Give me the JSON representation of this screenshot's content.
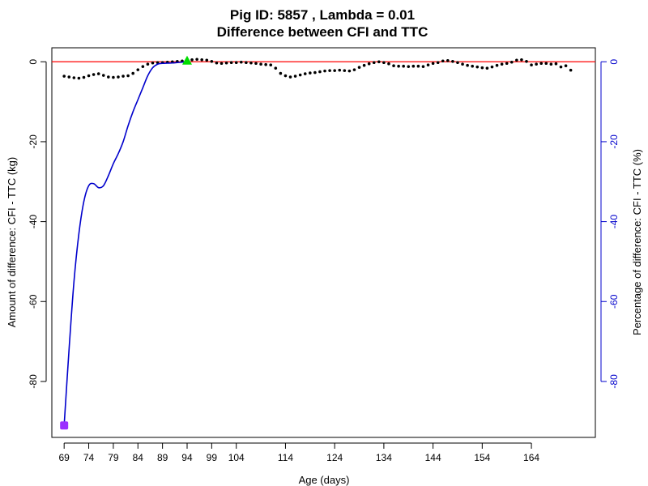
{
  "chart_data": {
    "type": "line",
    "title": "Pig ID: 5857 , Lambda = 0.01",
    "subtitle": "Difference between CFI and TTC",
    "xlabel": "Age (days)",
    "ylabel_left": "Amount of difference: CFI - TTC (kg)",
    "ylabel_right": "Percentage of difference: CFI - TTC (%)",
    "xlim": [
      66.5,
      177
    ],
    "ylim": [
      -94,
      3.5
    ],
    "x_ticks": [
      69,
      74,
      79,
      84,
      89,
      94,
      99,
      104,
      114,
      124,
      134,
      144,
      154,
      164
    ],
    "y_ticks_left": [
      0,
      -20,
      -40,
      -60,
      -80
    ],
    "y_ticks_right": [
      0,
      -20,
      -40,
      -60,
      -80
    ],
    "grid": false,
    "reference_line": {
      "y": 0,
      "color": "#ff0000"
    },
    "colors": {
      "amount": "#000000",
      "percentage": "#0000cc",
      "right_axis": "#0000cc",
      "start_marker": "#9b30ff",
      "end_marker": "#00dd00"
    },
    "markers": [
      {
        "name": "start",
        "shape": "square",
        "x": 69,
        "y": -91
      },
      {
        "name": "stable",
        "shape": "triangle",
        "x": 94,
        "y": 0.3
      }
    ],
    "series": [
      {
        "style": "dotted",
        "axis": "left",
        "x": [
          69,
          70,
          71,
          72,
          73,
          74,
          75,
          76,
          77,
          78,
          79,
          80,
          81,
          82,
          83,
          84,
          85,
          86,
          87,
          88,
          89,
          90,
          91,
          92,
          93,
          94,
          95,
          96,
          97,
          98,
          99,
          100,
          101,
          102,
          103,
          104,
          105,
          106,
          107,
          108,
          109,
          110,
          111,
          112,
          113,
          114,
          115,
          116,
          117,
          118,
          119,
          120,
          121,
          122,
          123,
          124,
          125,
          126,
          127,
          128,
          129,
          130,
          131,
          132,
          133,
          134,
          135,
          136,
          137,
          138,
          139,
          140,
          141,
          142,
          143,
          144,
          145,
          146,
          147,
          148,
          149,
          150,
          151,
          152,
          153,
          154,
          155,
          156,
          157,
          158,
          159,
          160,
          161,
          162,
          163,
          164,
          165,
          166,
          167,
          168,
          169,
          170,
          171,
          172
        ],
        "values": [
          -3.6,
          -3.8,
          -4.0,
          -4.1,
          -3.9,
          -3.5,
          -3.2,
          -3.0,
          -3.4,
          -3.8,
          -3.9,
          -3.8,
          -3.6,
          -3.5,
          -2.9,
          -2.0,
          -1.2,
          -0.6,
          -0.3,
          -0.2,
          -0.2,
          -0.1,
          0.0,
          0.1,
          0.2,
          0.3,
          0.5,
          0.6,
          0.5,
          0.4,
          0.1,
          -0.3,
          -0.4,
          -0.3,
          -0.2,
          -0.2,
          -0.1,
          -0.2,
          -0.3,
          -0.4,
          -0.6,
          -0.7,
          -0.8,
          -1.6,
          -2.9,
          -3.5,
          -3.8,
          -3.6,
          -3.3,
          -3.0,
          -2.8,
          -2.7,
          -2.5,
          -2.3,
          -2.2,
          -2.2,
          -2.1,
          -2.2,
          -2.3,
          -2.0,
          -1.4,
          -0.9,
          -0.5,
          -0.2,
          0.0,
          -0.2,
          -0.5,
          -1.0,
          -1.1,
          -1.1,
          -1.2,
          -1.1,
          -1.1,
          -1.2,
          -0.8,
          -0.4,
          -0.2,
          0.2,
          0.3,
          0.1,
          -0.2,
          -0.6,
          -0.9,
          -1.1,
          -1.3,
          -1.5,
          -1.6,
          -1.3,
          -0.9,
          -0.6,
          -0.4,
          -0.1,
          0.4,
          0.5,
          0.1,
          -0.8,
          -0.6,
          -0.4,
          -0.4,
          -0.6,
          -0.5,
          -1.3,
          -1.0,
          -2.1
        ]
      },
      {
        "style": "solid",
        "axis": "right",
        "x": [
          69,
          70,
          71,
          72,
          73,
          74,
          75,
          76,
          77,
          78,
          79,
          80,
          81,
          82,
          83,
          84,
          85,
          86,
          87,
          88,
          89,
          90,
          91,
          92,
          93,
          94
        ],
        "values": [
          -91,
          -72,
          -55,
          -43,
          -35,
          -31,
          -30.5,
          -31.5,
          -31,
          -28.5,
          -25.5,
          -23,
          -20,
          -16,
          -12.5,
          -9.5,
          -6.5,
          -3.5,
          -1.5,
          -0.6,
          -0.4,
          -0.35,
          -0.3,
          -0.2,
          -0.1,
          0.0
        ]
      }
    ]
  }
}
